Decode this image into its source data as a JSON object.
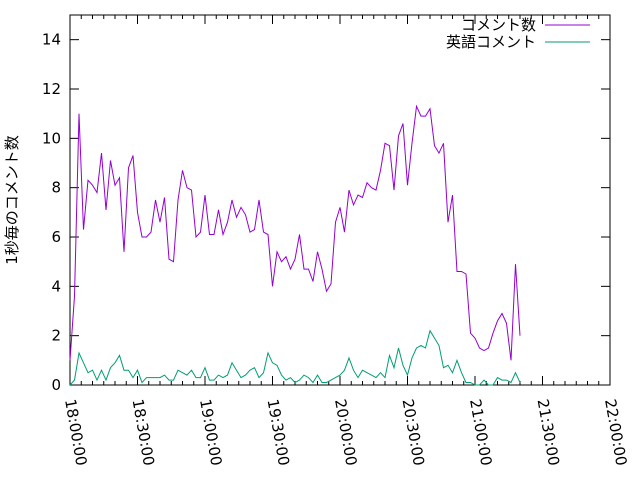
{
  "chart_data": {
    "type": "line",
    "ylabel": "1秒毎のコメント数",
    "xlabel": "",
    "title": "",
    "ylim": [
      0,
      15
    ],
    "xlim": [
      "18:00:00",
      "22:00:00"
    ],
    "yticks": [
      0,
      2,
      4,
      6,
      8,
      10,
      12,
      14
    ],
    "xticks": [
      "18:00:00",
      "18:30:00",
      "19:00:00",
      "19:30:00",
      "20:00:00",
      "20:30:00",
      "21:00:00",
      "21:30:00",
      "22:00:00"
    ],
    "grid": false,
    "legend_position": "top-right",
    "x_interval": "2 minutes",
    "x_start": "18:00:00",
    "series": [
      {
        "name": "コメント数",
        "color": "#9400d3",
        "values": [
          1.0,
          3.6,
          11.0,
          6.3,
          8.3,
          8.1,
          7.8,
          9.4,
          7.1,
          9.1,
          8.1,
          8.4,
          5.4,
          8.8,
          9.3,
          7.0,
          6.0,
          6.0,
          6.2,
          7.5,
          6.6,
          7.6,
          5.1,
          5.0,
          7.5,
          8.7,
          8.0,
          7.9,
          6.0,
          6.2,
          7.7,
          6.1,
          6.1,
          7.1,
          6.1,
          6.6,
          7.5,
          6.8,
          7.2,
          6.9,
          6.2,
          6.3,
          7.5,
          6.2,
          6.1,
          4.0,
          5.4,
          5.0,
          5.2,
          4.7,
          5.1,
          6.1,
          4.7,
          4.7,
          4.2,
          5.4,
          4.7,
          3.8,
          4.1,
          6.6,
          7.2,
          6.2,
          7.9,
          7.3,
          7.7,
          7.6,
          8.2,
          8.0,
          7.9,
          8.7,
          9.8,
          9.7,
          7.9,
          10.1,
          10.6,
          8.1,
          9.8,
          11.3,
          10.9,
          10.9,
          11.2,
          9.7,
          9.4,
          9.8,
          6.6,
          7.7,
          4.6,
          4.6,
          4.5,
          2.1,
          1.9,
          1.5,
          1.4,
          1.5,
          2.1,
          2.6,
          2.9,
          2.5,
          1.0,
          4.9,
          2.0
        ]
      },
      {
        "name": "英語コメント",
        "color": "#009e73",
        "values": [
          0.0,
          0.2,
          1.3,
          0.9,
          0.5,
          0.6,
          0.2,
          0.6,
          0.2,
          0.7,
          0.9,
          1.2,
          0.6,
          0.6,
          0.3,
          0.6,
          0.1,
          0.3,
          0.3,
          0.3,
          0.3,
          0.4,
          0.2,
          0.2,
          0.6,
          0.5,
          0.4,
          0.6,
          0.3,
          0.3,
          0.7,
          0.2,
          0.2,
          0.4,
          0.3,
          0.4,
          0.9,
          0.6,
          0.3,
          0.4,
          0.6,
          0.7,
          0.3,
          0.5,
          1.3,
          0.9,
          0.8,
          0.4,
          0.2,
          0.3,
          0.1,
          0.2,
          0.4,
          0.3,
          0.1,
          0.4,
          0.1,
          0.1,
          0.2,
          0.3,
          0.4,
          0.6,
          1.1,
          0.6,
          0.3,
          0.6,
          0.5,
          0.4,
          0.3,
          0.5,
          0.3,
          1.2,
          0.7,
          1.5,
          0.8,
          0.4,
          1.1,
          1.5,
          1.6,
          1.5,
          2.2,
          1.9,
          1.6,
          0.7,
          0.8,
          0.5,
          1.0,
          0.5,
          0.1,
          0.1,
          0.0,
          0.0,
          0.2,
          0.0,
          0.0,
          0.3,
          0.2,
          0.2,
          0.1,
          0.5,
          0.1
        ]
      }
    ]
  }
}
